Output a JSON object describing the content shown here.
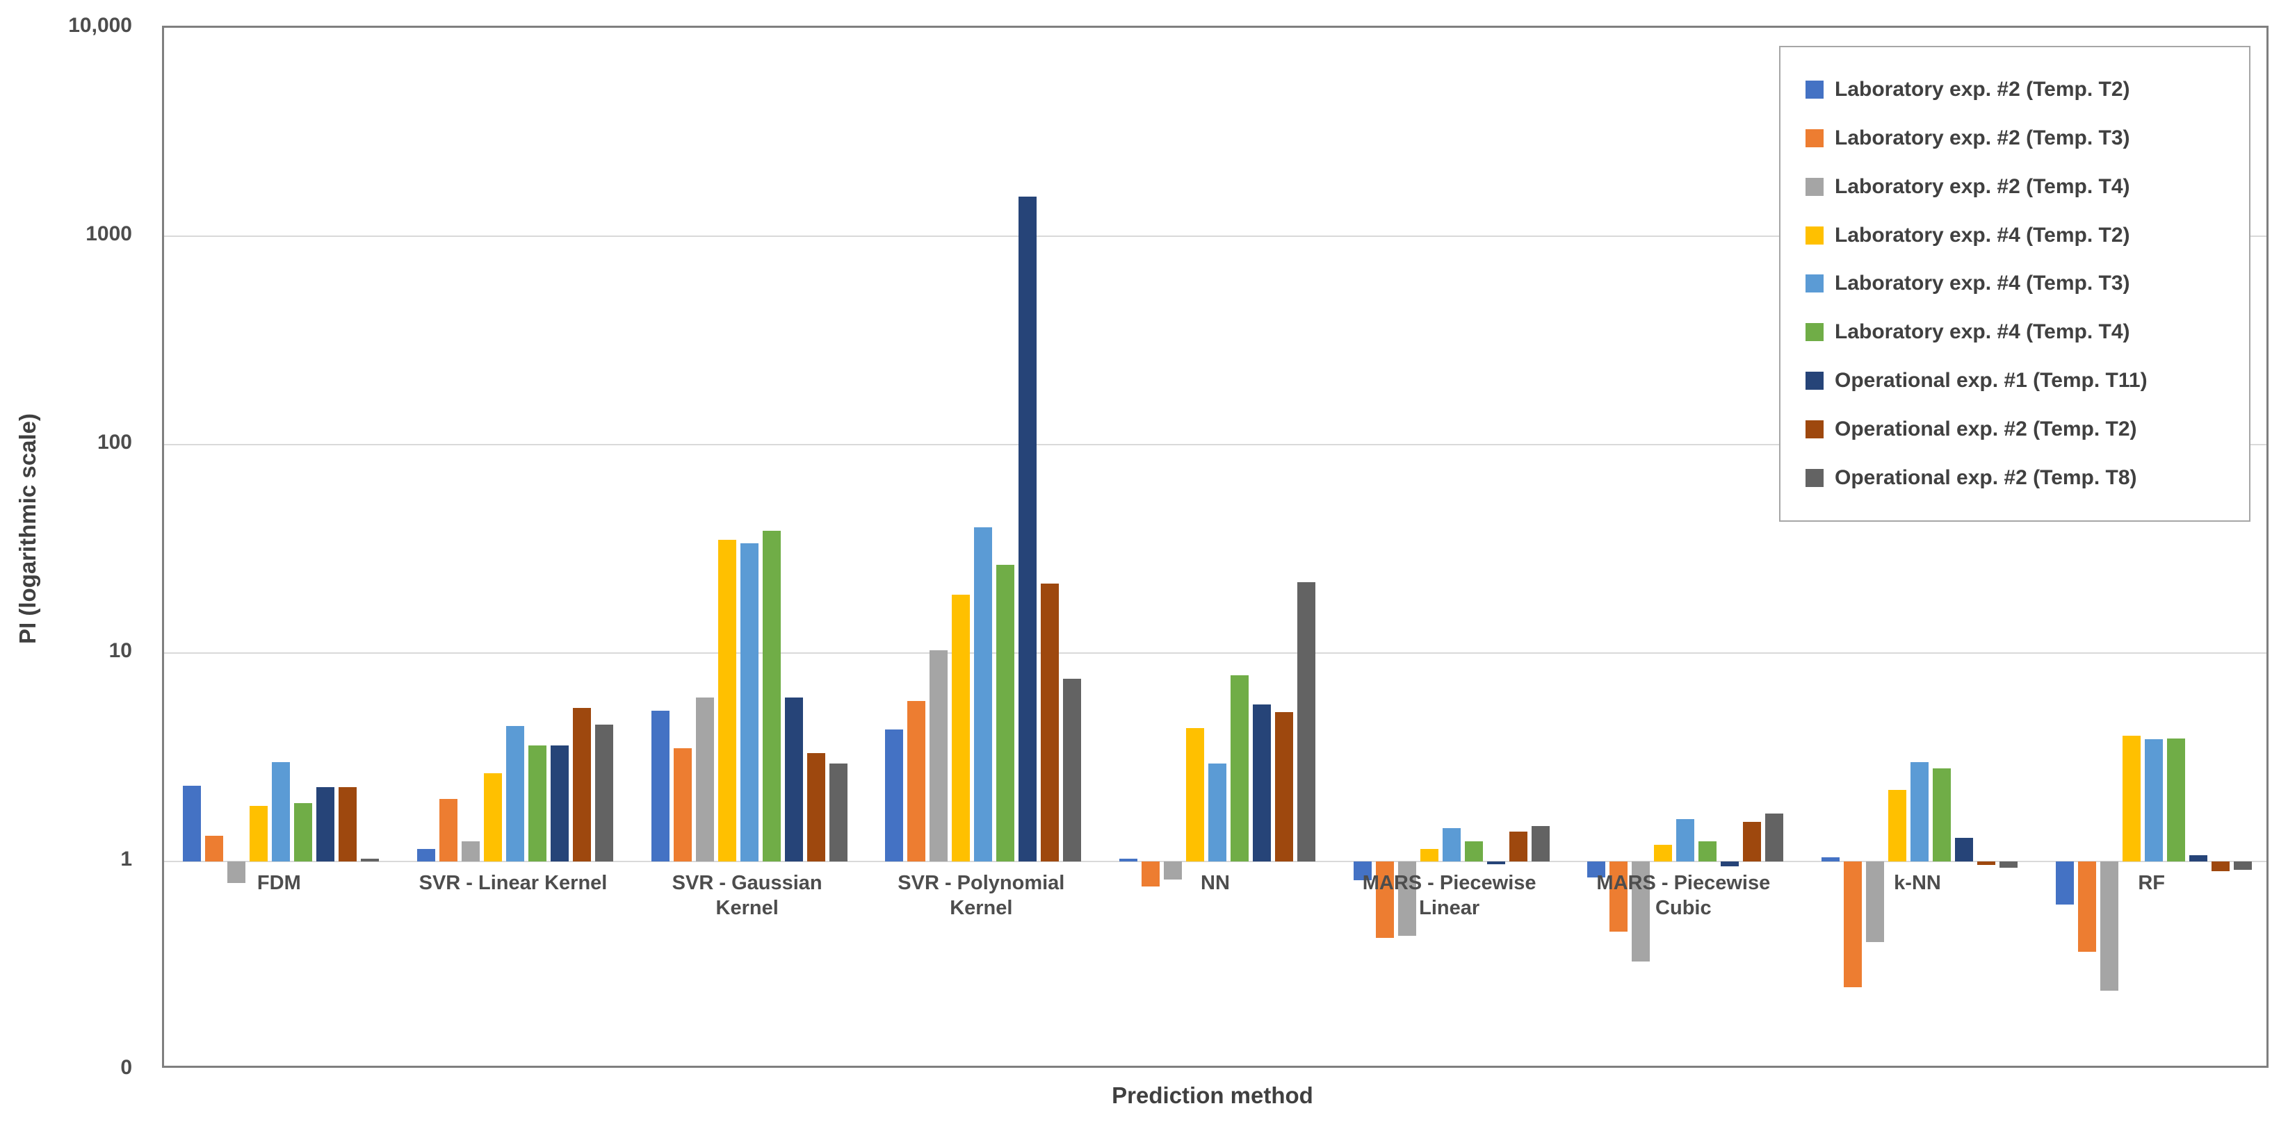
{
  "chart_data": {
    "type": "bar",
    "title": "",
    "xlabel": "Prediction method",
    "ylabel": "PI (logarithmic scale)",
    "y_scale": "log10",
    "ylim": [
      0.1,
      10000
    ],
    "bar_baseline_value": 1,
    "grid": true,
    "legend_position": "top-right-inside",
    "y_ticks": [
      {
        "value": 0.1,
        "label": "0"
      },
      {
        "value": 1,
        "label": "1"
      },
      {
        "value": 10,
        "label": "10"
      },
      {
        "value": 100,
        "label": "100"
      },
      {
        "value": 1000,
        "label": "1000"
      },
      {
        "value": 10000,
        "label": "10,000"
      }
    ],
    "categories": [
      "FDM",
      "SVR - Linear Kernel",
      "SVR - Gaussian Kernel",
      "SVR - Polynomial Kernel",
      "NN",
      "MARS - Piecewise Linear",
      "MARS - Piecewise Cubic",
      "k-NN",
      "RF"
    ],
    "series": [
      {
        "name": "Laboratory exp. #2 (Temp. T2)",
        "color": "#4472C4",
        "values": [
          2.3,
          1.15,
          5.3,
          4.3,
          1.03,
          0.81,
          0.84,
          1.05,
          0.62
        ]
      },
      {
        "name": "Laboratory exp. #2 (Temp. T3)",
        "color": "#ED7D31",
        "values": [
          1.33,
          2.0,
          3.5,
          5.9,
          0.76,
          0.43,
          0.46,
          0.25,
          0.37
        ]
      },
      {
        "name": "Laboratory exp. #2 (Temp. T4)",
        "color": "#A5A5A5",
        "values": [
          0.79,
          1.25,
          6.1,
          10.3,
          0.82,
          0.44,
          0.33,
          0.41,
          0.24
        ]
      },
      {
        "name": "Laboratory exp. #4 (Temp. T2)",
        "color": "#FFC000",
        "values": [
          1.85,
          2.65,
          35.0,
          19.0,
          4.35,
          1.15,
          1.2,
          2.2,
          4.0
        ]
      },
      {
        "name": "Laboratory exp. #4 (Temp. T3)",
        "color": "#5B9BD5",
        "values": [
          3.0,
          4.45,
          33.5,
          40.0,
          2.95,
          1.45,
          1.6,
          3.0,
          3.85
        ]
      },
      {
        "name": "Laboratory exp. #4 (Temp. T4)",
        "color": "#70AD47",
        "values": [
          1.9,
          3.6,
          38.5,
          26.5,
          7.8,
          1.25,
          1.25,
          2.8,
          3.9
        ]
      },
      {
        "name": "Operational exp. #1 (Temp. T11)",
        "color": "#264478",
        "values": [
          2.28,
          3.6,
          6.1,
          1550,
          5.65,
          0.97,
          0.95,
          1.3,
          1.07
        ]
      },
      {
        "name": "Operational exp. #2 (Temp. T2)",
        "color": "#9E480E",
        "values": [
          2.28,
          5.45,
          3.3,
          21.5,
          5.2,
          1.39,
          1.55,
          0.96,
          0.9
        ]
      },
      {
        "name": "Operational exp. #2 (Temp. T8)",
        "color": "#636363",
        "values": [
          1.03,
          4.55,
          2.95,
          7.5,
          21.9,
          1.48,
          1.7,
          0.93,
          0.91
        ]
      }
    ],
    "style": {
      "plot_border_color": "#7f7f7f",
      "gridline_color": "#d9d9d9",
      "tick_text_color": "#4d4d4d",
      "title_text_color": "#404040",
      "background": "#ffffff"
    }
  }
}
